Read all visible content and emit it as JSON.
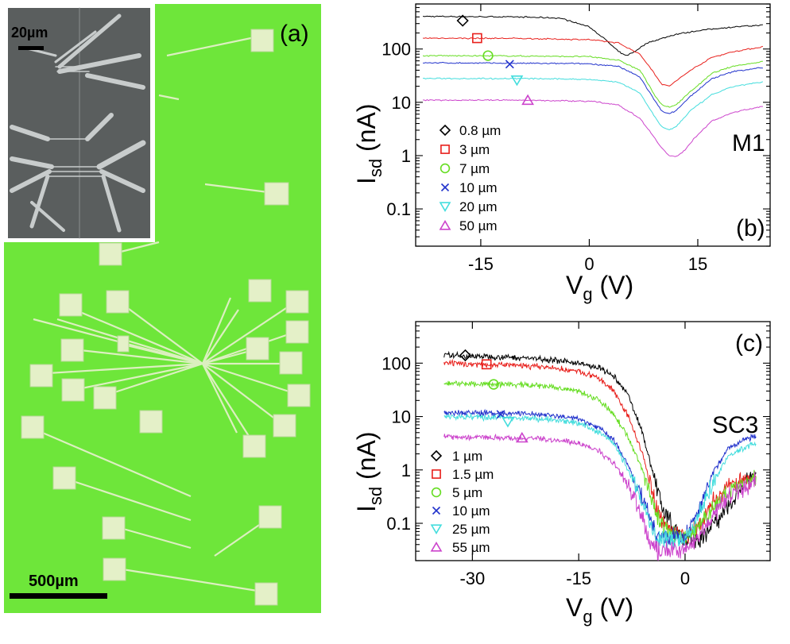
{
  "panel_a": {
    "label": "(a)",
    "scale_bar": "500µm",
    "inset_scale_bar": "20µm",
    "colors": {
      "substrate": "#6ee63a",
      "pad": "#e4f0c8",
      "sem_bg": "#5a5e5e",
      "sem_metal": "#c8cccc"
    }
  },
  "chart_data": [
    {
      "type": "line",
      "panel_label": "(b)",
      "annotation": "M1",
      "xlabel_main": "V",
      "xlabel_sub": "g",
      "xlabel_unit": " (V)",
      "ylabel_main": "I",
      "ylabel_sub": "sd",
      "ylabel_unit": " (nA)",
      "xlim": [
        -24,
        25
      ],
      "ylim": [
        0.02,
        700
      ],
      "yscale": "log",
      "xticks": [
        -15,
        0,
        15
      ],
      "xtick_labels": [
        "-15",
        "0",
        "15"
      ],
      "yticks": [
        0.1,
        1,
        10,
        100
      ],
      "ytick_labels": [
        "0.1",
        "1",
        "10",
        "100"
      ],
      "legend_position": "lower-left",
      "series": [
        {
          "name": "0.8 µm",
          "marker": "diamond",
          "color": "#000000",
          "marker_x": -17.5,
          "marker_y": 340,
          "x": [
            -23,
            -10,
            -4,
            0,
            2,
            4,
            5,
            6,
            8,
            12,
            16,
            20,
            24
          ],
          "y": [
            410,
            400,
            380,
            260,
            160,
            90,
            75,
            85,
            130,
            190,
            230,
            260,
            280
          ]
        },
        {
          "name": "3 µm",
          "marker": "square",
          "color": "#e8201c",
          "marker_x": -15.5,
          "marker_y": 160,
          "x": [
            -23,
            -10,
            0,
            4,
            7,
            9,
            10,
            11,
            12,
            14,
            17,
            20,
            24
          ],
          "y": [
            160,
            158,
            150,
            130,
            80,
            35,
            22,
            20,
            25,
            40,
            70,
            90,
            110
          ]
        },
        {
          "name": "7 µm",
          "marker": "circle",
          "color": "#66dd22",
          "marker_x": -14,
          "marker_y": 75,
          "x": [
            -23,
            -10,
            0,
            4,
            7,
            9,
            10,
            11,
            12,
            14,
            17,
            20,
            24
          ],
          "y": [
            75,
            74,
            72,
            62,
            40,
            14,
            9,
            8,
            9,
            16,
            35,
            48,
            58
          ]
        },
        {
          "name": "10 µm",
          "marker": "x",
          "color": "#2233cc",
          "marker_x": -11,
          "marker_y": 52,
          "x": [
            -23,
            -10,
            0,
            4,
            7,
            9,
            10,
            11,
            12,
            14,
            17,
            20,
            24
          ],
          "y": [
            55,
            54,
            53,
            47,
            30,
            11,
            7,
            6,
            7,
            13,
            28,
            38,
            45
          ]
        },
        {
          "name": "20 µm",
          "marker": "triangle-down",
          "color": "#44dddd",
          "marker_x": -10,
          "marker_y": 26,
          "x": [
            -23,
            -10,
            0,
            4,
            7,
            9,
            10,
            11,
            12,
            14,
            17,
            20,
            24
          ],
          "y": [
            28,
            28,
            27,
            24,
            15,
            5.5,
            3.5,
            3,
            3.5,
            7,
            14,
            20,
            24
          ]
        },
        {
          "name": "50 µm",
          "marker": "triangle-up",
          "color": "#cc44cc",
          "marker_x": -8.5,
          "marker_y": 11,
          "x": [
            -23,
            -10,
            0,
            4,
            7,
            9,
            10,
            11,
            12,
            13,
            15,
            17,
            20,
            24
          ],
          "y": [
            11,
            11,
            10.5,
            9,
            5,
            2.2,
            1.4,
            1.0,
            0.95,
            1.2,
            2.5,
            4.5,
            6.5,
            8.5
          ]
        }
      ]
    },
    {
      "type": "line",
      "panel_label": "(c)",
      "annotation": "SC3",
      "xlabel_main": "V",
      "xlabel_sub": "g",
      "xlabel_unit": " (V)",
      "ylabel_main": "I",
      "ylabel_sub": "sd",
      "ylabel_unit": " (nA)",
      "xlim": [
        -38,
        12
      ],
      "ylim": [
        0.02,
        600
      ],
      "yscale": "log",
      "xticks": [
        -30,
        -15,
        0
      ],
      "xtick_labels": [
        "-30",
        "-15",
        "0"
      ],
      "yticks": [
        0.1,
        1,
        10,
        100
      ],
      "ytick_labels": [
        "0.1",
        "1",
        "10",
        "100"
      ],
      "legend_position": "lower-left",
      "series": [
        {
          "name": "1 µm",
          "marker": "diamond",
          "color": "#000000",
          "marker_x": -31,
          "marker_y": 140,
          "x": [
            -34,
            -25,
            -20,
            -15,
            -12,
            -10,
            -8,
            -6,
            -5,
            -4,
            -3,
            -2,
            0,
            2,
            4,
            6,
            8,
            10
          ],
          "y": [
            140,
            130,
            120,
            100,
            80,
            55,
            25,
            5,
            1.5,
            0.5,
            0.15,
            0.1,
            0.05,
            0.05,
            0.1,
            0.2,
            0.5,
            0.9
          ]
        },
        {
          "name": "1.5 µm",
          "marker": "square",
          "color": "#e8201c",
          "marker_x": -28,
          "marker_y": 95,
          "x": [
            -34,
            -25,
            -20,
            -15,
            -12,
            -10,
            -8,
            -6,
            -5,
            -4,
            -3,
            0,
            2,
            4,
            6,
            8,
            10
          ],
          "y": [
            100,
            92,
            85,
            70,
            50,
            30,
            10,
            2,
            0.6,
            0.2,
            0.1,
            0.05,
            0.1,
            0.25,
            0.5,
            0.6,
            0.8
          ]
        },
        {
          "name": "5 µm",
          "marker": "circle",
          "color": "#66dd22",
          "marker_x": -27,
          "marker_y": 40,
          "x": [
            -34,
            -25,
            -20,
            -15,
            -12,
            -10,
            -8,
            -6,
            -5,
            -4,
            -3,
            0,
            2,
            4,
            6,
            8,
            10
          ],
          "y": [
            42,
            40,
            37,
            30,
            20,
            11,
            4,
            1.0,
            0.4,
            0.15,
            0.08,
            0.05,
            0.1,
            0.2,
            0.35,
            0.5,
            0.7
          ]
        },
        {
          "name": "10 µm",
          "marker": "x",
          "color": "#2233cc",
          "marker_x": -26,
          "marker_y": 11,
          "x": [
            -34,
            -25,
            -20,
            -15,
            -12,
            -10,
            -8,
            -6,
            -5,
            -4,
            0,
            2,
            4,
            6,
            8,
            10
          ],
          "y": [
            12,
            11.5,
            11,
            9,
            6,
            3.5,
            1.2,
            0.3,
            0.12,
            0.06,
            0.05,
            0.2,
            0.9,
            2.5,
            3.5,
            4.5
          ]
        },
        {
          "name": "25 µm",
          "marker": "triangle-down",
          "color": "#44dddd",
          "marker_x": -25,
          "marker_y": 8,
          "x": [
            -34,
            -25,
            -20,
            -15,
            -12,
            -10,
            -8,
            -6,
            -5,
            -4,
            0,
            2,
            4,
            6,
            8,
            10
          ],
          "y": [
            10,
            9.5,
            9,
            7.5,
            5,
            3,
            1,
            0.25,
            0.1,
            0.05,
            0.05,
            0.15,
            0.6,
            1.8,
            2.5,
            3.2
          ]
        },
        {
          "name": "55 µm",
          "marker": "triangle-up",
          "color": "#cc44cc",
          "marker_x": -23,
          "marker_y": 4,
          "x": [
            -34,
            -25,
            -20,
            -15,
            -12,
            -10,
            -8,
            -6,
            -5,
            -4,
            0,
            2,
            4,
            6,
            8,
            10
          ],
          "y": [
            4.2,
            4.0,
            3.8,
            3.2,
            2.2,
            1.3,
            0.5,
            0.12,
            0.05,
            0.03,
            0.03,
            0.06,
            0.15,
            0.3,
            0.45,
            0.6
          ]
        }
      ]
    }
  ]
}
